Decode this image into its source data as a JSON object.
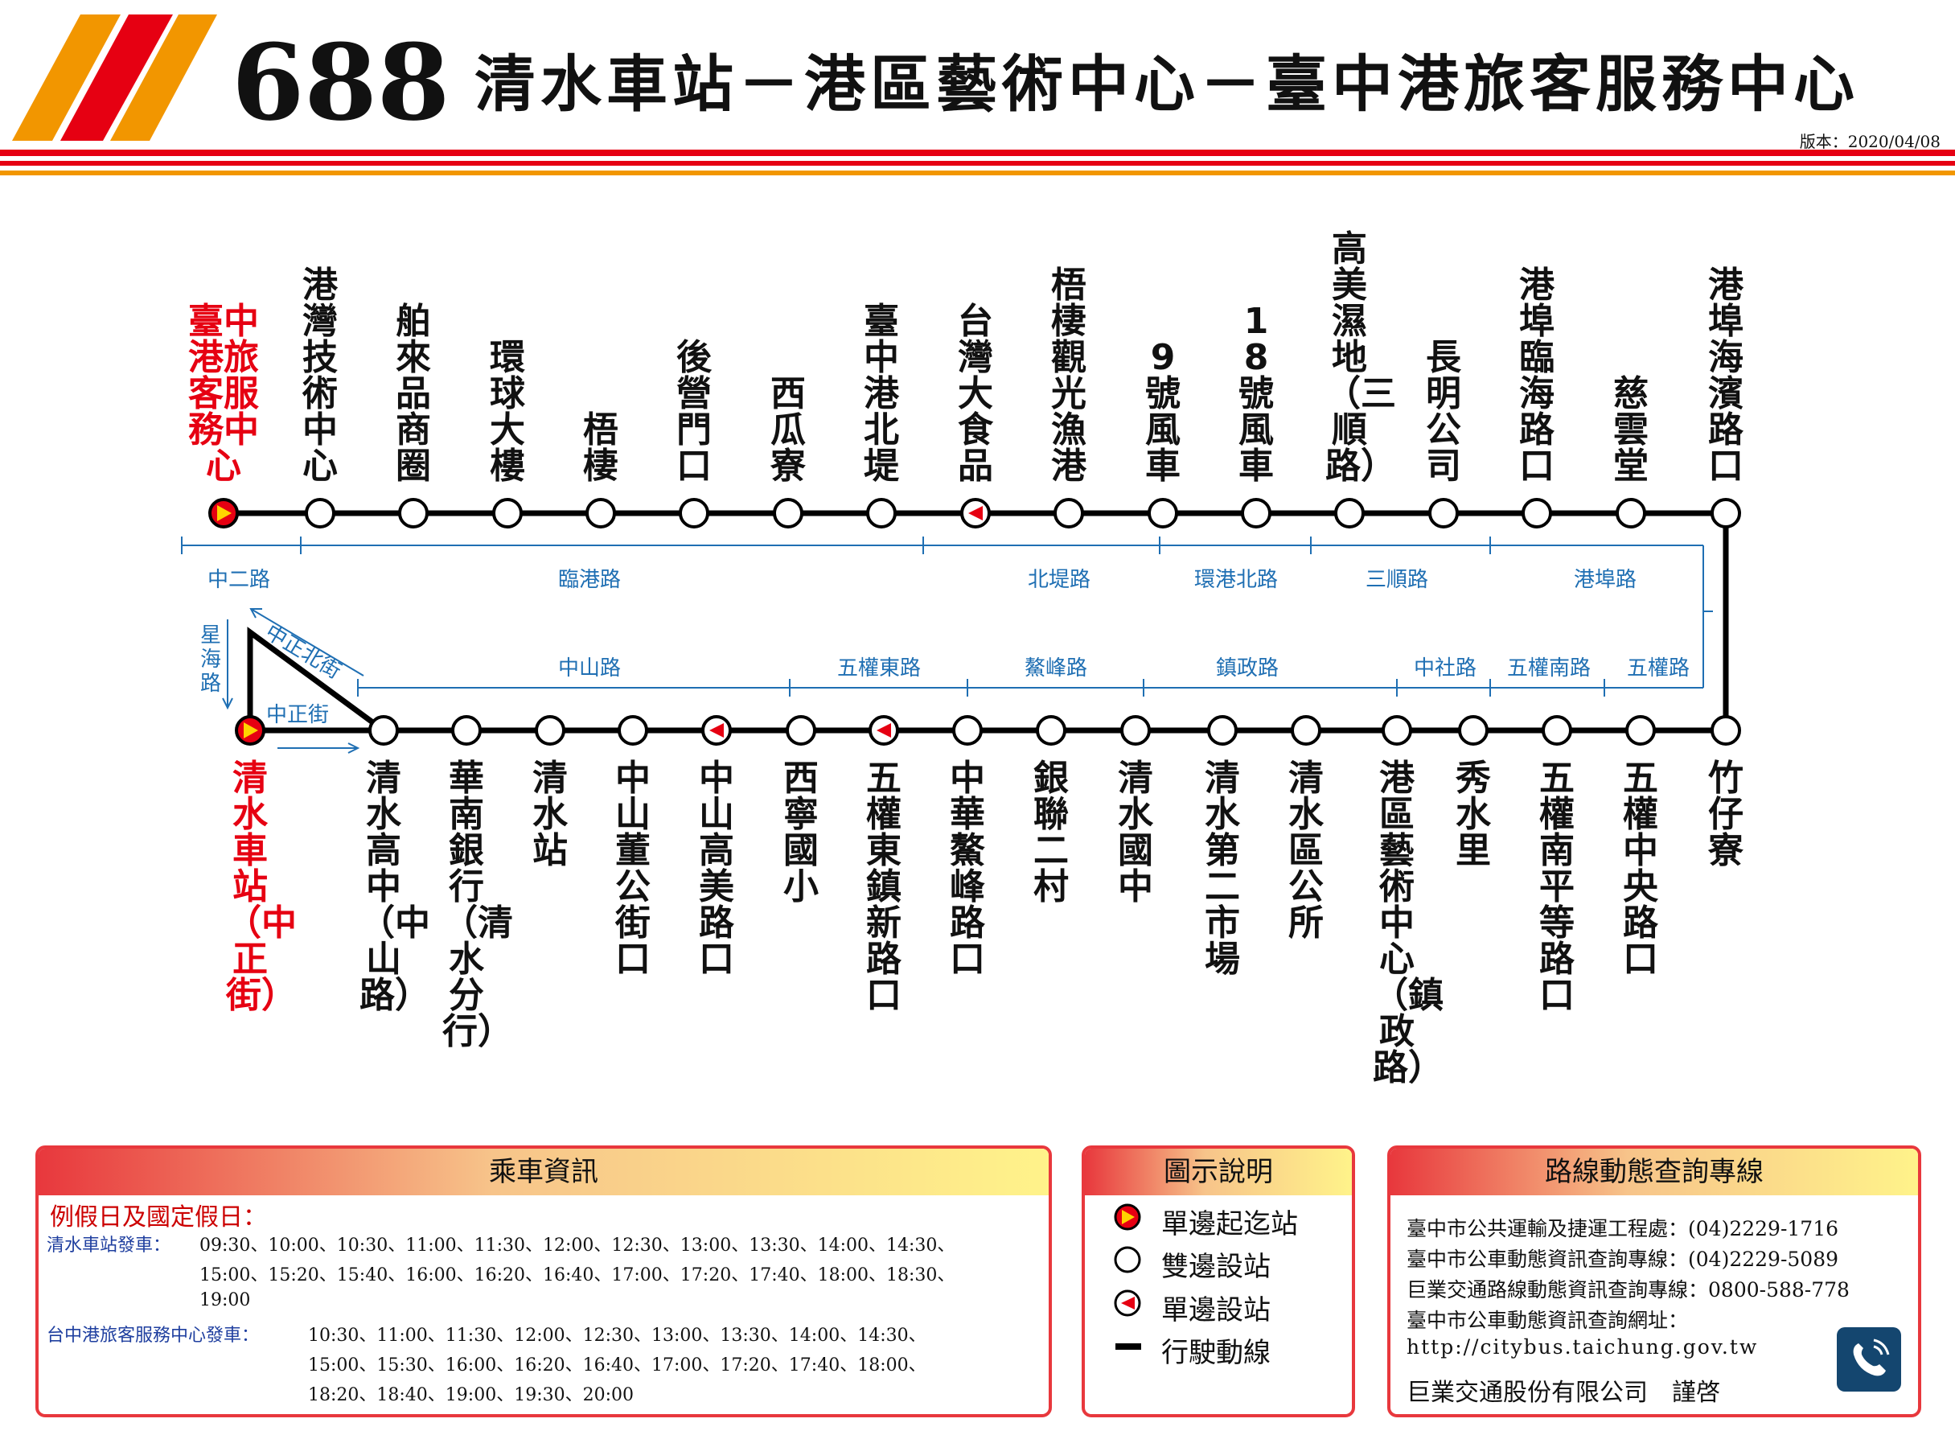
{
  "header": {
    "route_number": "688",
    "title": "清水車站－港區藝術中心－臺中港旅客服務中心",
    "version": "版本：2020/04/08"
  },
  "colors": {
    "red": "#e60012",
    "orange": "#f29600",
    "blue": "#1f6fb3"
  },
  "top_stops": [
    {
      "label": "臺中港旅客服務中心",
      "type": "terminal"
    },
    {
      "label": "港灣技術中心",
      "type": "both"
    },
    {
      "label": "舶來品商圈",
      "type": "both"
    },
    {
      "label": "環球大樓",
      "type": "both"
    },
    {
      "label": "梧棲",
      "type": "both"
    },
    {
      "label": "後營門口",
      "type": "both"
    },
    {
      "label": "西瓜寮",
      "type": "both"
    },
    {
      "label": "臺中港北堤",
      "type": "both"
    },
    {
      "label": "台灣大食品",
      "type": "one-way"
    },
    {
      "label": "梧棲觀光漁港",
      "type": "both"
    },
    {
      "label": "9號風車",
      "type": "both"
    },
    {
      "label": "18號風車",
      "type": "both"
    },
    {
      "label": "高美濕地（三順路）",
      "type": "both"
    },
    {
      "label": "長明公司",
      "type": "both"
    },
    {
      "label": "港埠臨海路口",
      "type": "both"
    },
    {
      "label": "慈雲堂",
      "type": "both"
    },
    {
      "label": "港埠海濱路口",
      "type": "both"
    }
  ],
  "bottom_stops": [
    {
      "label": "清水車站（中正街）",
      "type": "terminal"
    },
    {
      "label": "清水高中（中山路）",
      "type": "both"
    },
    {
      "label": "華南銀行（清水分行）",
      "type": "both"
    },
    {
      "label": "清水站",
      "type": "both"
    },
    {
      "label": "中山董公街口",
      "type": "both"
    },
    {
      "label": "中山高美路口",
      "type": "one-way"
    },
    {
      "label": "西寧國小",
      "type": "both"
    },
    {
      "label": "五權東鎮新路口",
      "type": "one-way"
    },
    {
      "label": "中華鰲峰路口",
      "type": "both"
    },
    {
      "label": "銀聯二村",
      "type": "both"
    },
    {
      "label": "清水國中",
      "type": "both"
    },
    {
      "label": "清水第二市場",
      "type": "both"
    },
    {
      "label": "清水區公所",
      "type": "both"
    },
    {
      "label": "港區藝術中心（鎮政路）",
      "type": "both"
    },
    {
      "label": "秀水里",
      "type": "both"
    },
    {
      "label": "五權南平等路口",
      "type": "both"
    },
    {
      "label": "五權中央路口",
      "type": "both"
    },
    {
      "label": "竹仔寮",
      "type": "both"
    }
  ],
  "roads_top": [
    "中二路",
    "臨港路",
    "北堤路",
    "環港北路",
    "三順路",
    "港埠路"
  ],
  "roads_bottom": [
    "中山路",
    "五權東路",
    "鰲峰路",
    "鎮政路",
    "中社路",
    "五權南路",
    "五權路"
  ],
  "roads_loop": {
    "left": "星海路",
    "diagonal": "中正北街",
    "bottom": "中正街"
  },
  "ride_info": {
    "heading": "乘車資訊",
    "subheading": "例假日及國定假日：",
    "from_station_label": "清水車站發車：",
    "from_station_line1": "09:30、10:00、10:30、11:00、11:30、12:00、12:30、13:00、13:30、14:00、14:30、",
    "from_station_line2": "15:00、15:20、15:40、16:00、16:20、16:40、17:00、17:20、17:40、18:00、18:30、",
    "from_station_line3": "19:00",
    "from_port_label": "台中港旅客服務中心發車：",
    "from_port_line1": "10:30、11:00、11:30、12:00、12:30、13:00、13:30、14:00、14:30、",
    "from_port_line2": "15:00、15:30、16:00、16:20、16:40、17:00、17:20、17:40、18:00、",
    "from_port_line3": "18:20、18:40、19:00、19:30、20:00"
  },
  "legend": {
    "heading": "圖示說明",
    "terminal": "單邊起迄站",
    "both": "雙邊設站",
    "one_way": "單邊設站",
    "line": "行駛動線"
  },
  "hotline": {
    "heading": "路線動態查詢專線",
    "line1": "臺中市公共運輸及捷運工程處：(04)2229-1716",
    "line2": "臺中市公車動態資訊查詢專線：(04)2229-5089",
    "line3": "巨業交通路線動態資訊查詢專線：0800-588-778",
    "line4": "臺中市公車動態資訊查詢網址：",
    "url": "http://citybus.taichung.gov.tw",
    "company": "巨業交通股份有限公司　謹啓",
    "icon": "phone-icon"
  }
}
